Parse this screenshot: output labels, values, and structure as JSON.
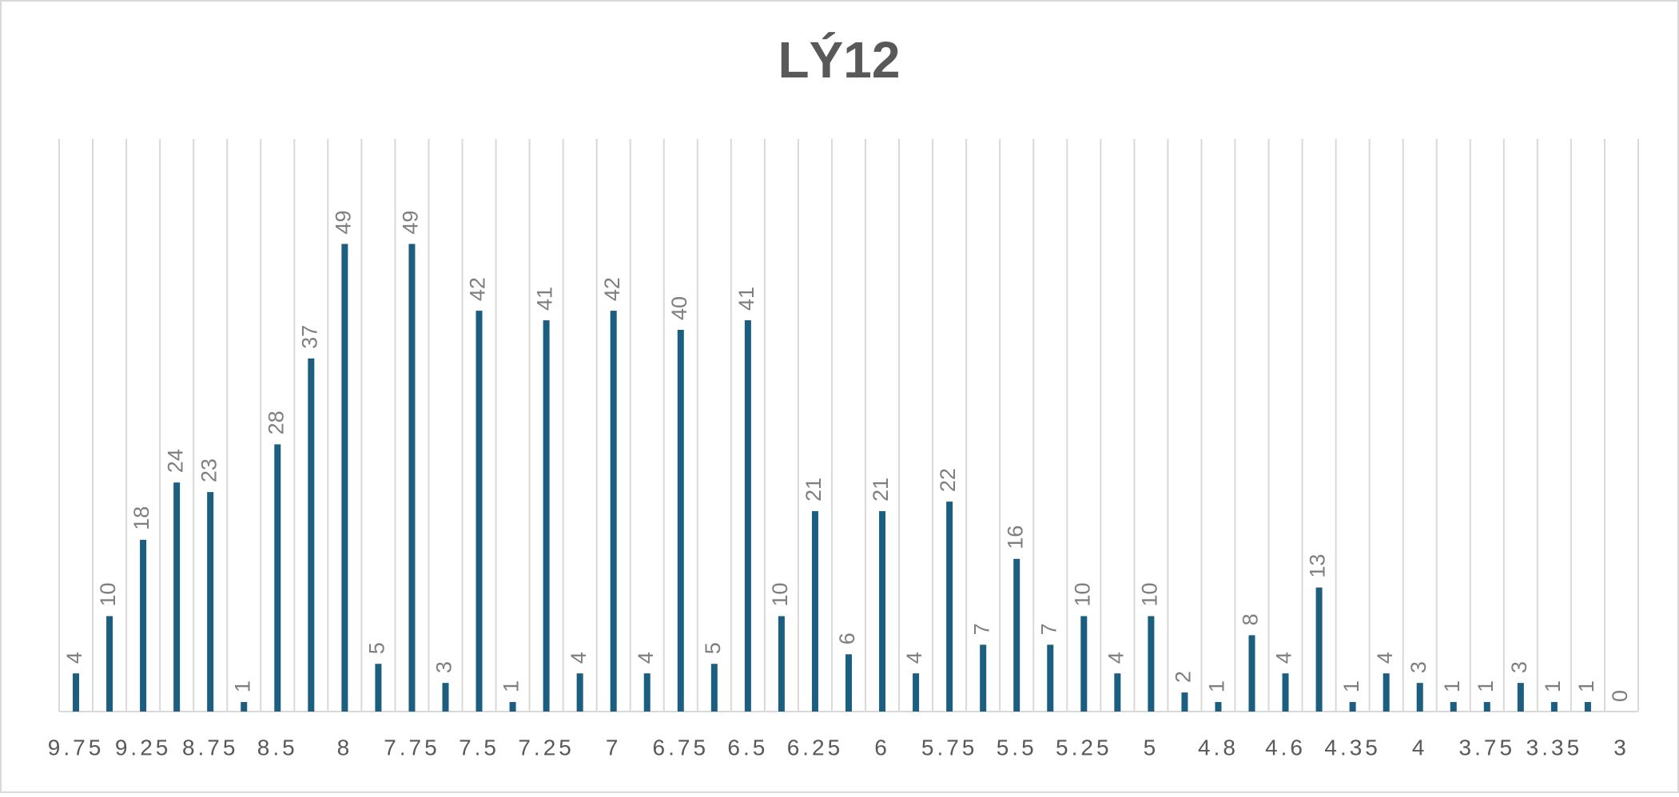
{
  "chart_data": {
    "type": "bar",
    "title": "LÝ12",
    "categories": [
      "9.75",
      null,
      "9.25",
      null,
      "8.75",
      null,
      "8.5",
      null,
      "8",
      null,
      "7.75",
      null,
      "7.5",
      null,
      "7.25",
      null,
      "7",
      null,
      "6.75",
      null,
      "6.5",
      null,
      "6.25",
      null,
      "6",
      null,
      "5.75",
      null,
      "5.5",
      null,
      "5.25",
      null,
      "5",
      null,
      "4.8",
      null,
      "4.6",
      null,
      "4.35",
      null,
      "4",
      null,
      "3.75",
      null,
      "3.35",
      null,
      "3"
    ],
    "values": [
      4,
      10,
      18,
      24,
      23,
      1,
      28,
      37,
      49,
      5,
      49,
      3,
      42,
      1,
      41,
      4,
      42,
      4,
      40,
      5,
      41,
      10,
      21,
      6,
      21,
      4,
      22,
      7,
      16,
      7,
      10,
      4,
      10,
      2,
      1,
      8,
      4,
      13,
      1,
      4,
      3,
      1,
      1,
      3,
      1,
      1,
      0
    ],
    "color": "#1b5e80",
    "ylim": [
      0,
      60
    ],
    "grid": true
  }
}
